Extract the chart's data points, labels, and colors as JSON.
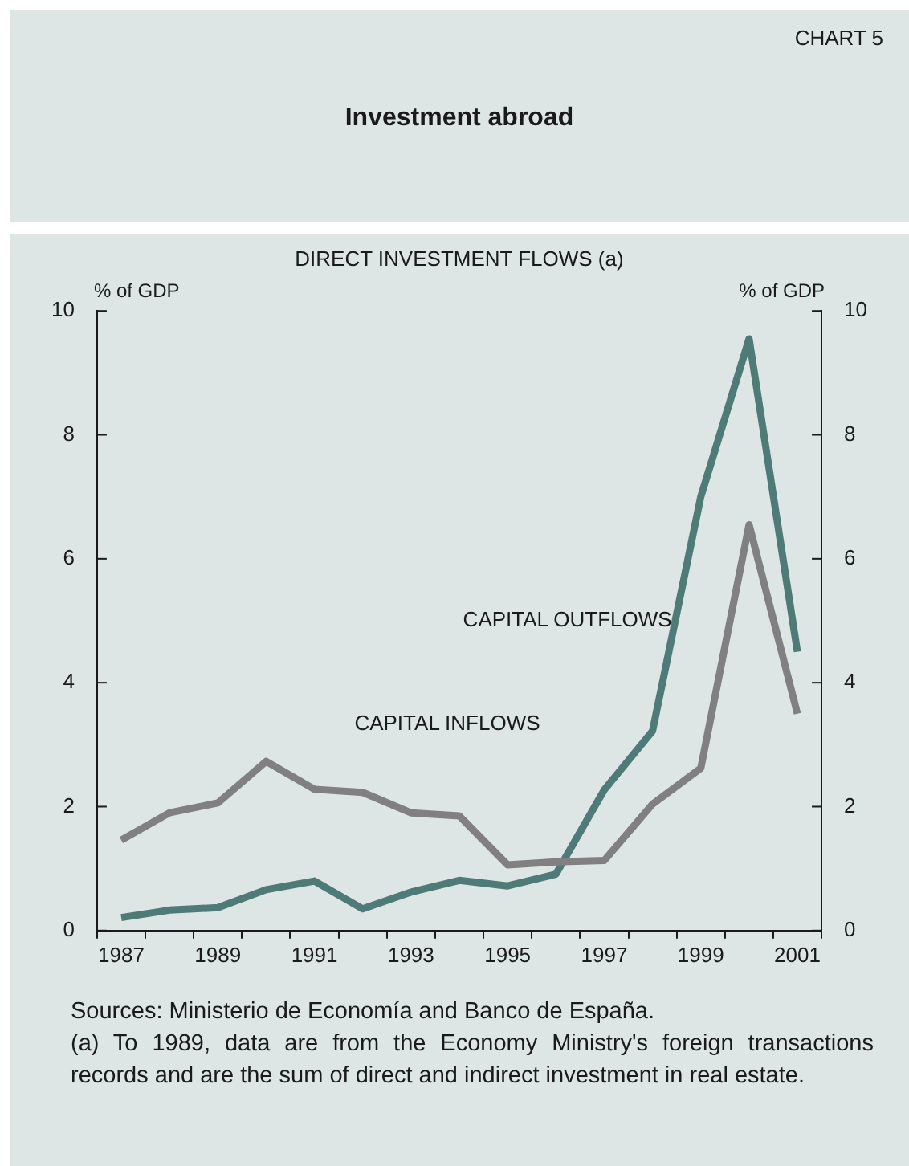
{
  "chart_data": {
    "type": "line",
    "title": "Investment abroad",
    "subtitle": "DIRECT INVESTMENT FLOWS (a)",
    "ylabel": "% of GDP",
    "y2label": "% of GDP",
    "categories": [
      "1987",
      null,
      "1989",
      null,
      "1991",
      null,
      "1993",
      null,
      "1995",
      null,
      "1997",
      null,
      "1999",
      null,
      "2001"
    ],
    "series": [
      {
        "name": "CAPITAL INFLOWS",
        "color": "#808080",
        "values": [
          1.46,
          1.9,
          2.06,
          2.73,
          2.28,
          2.23,
          1.9,
          1.85,
          1.06,
          1.11,
          1.13,
          2.04,
          2.62,
          6.55,
          3.5
        ]
      },
      {
        "name": "CAPITAL OUTFLOWS",
        "color": "#4e7b78",
        "values": [
          0.21,
          0.33,
          0.37,
          0.66,
          0.8,
          0.35,
          0.62,
          0.81,
          0.72,
          0.91,
          2.27,
          3.22,
          7.0,
          9.55,
          4.5
        ]
      }
    ],
    "ylim": [
      0,
      10
    ],
    "yticks": [
      0,
      2,
      4,
      6,
      8,
      10
    ],
    "y2lim": [
      0,
      10
    ],
    "y2ticks": [
      0,
      2,
      4,
      6,
      8,
      10
    ],
    "annotations": [
      "CHART 5",
      "Sources: Ministerio de Economía and Banco de España.",
      "(a)   To 1989, data are from the Economy Ministry's foreign transactions records and are the sum of direct and indirect investment in real estate."
    ]
  }
}
